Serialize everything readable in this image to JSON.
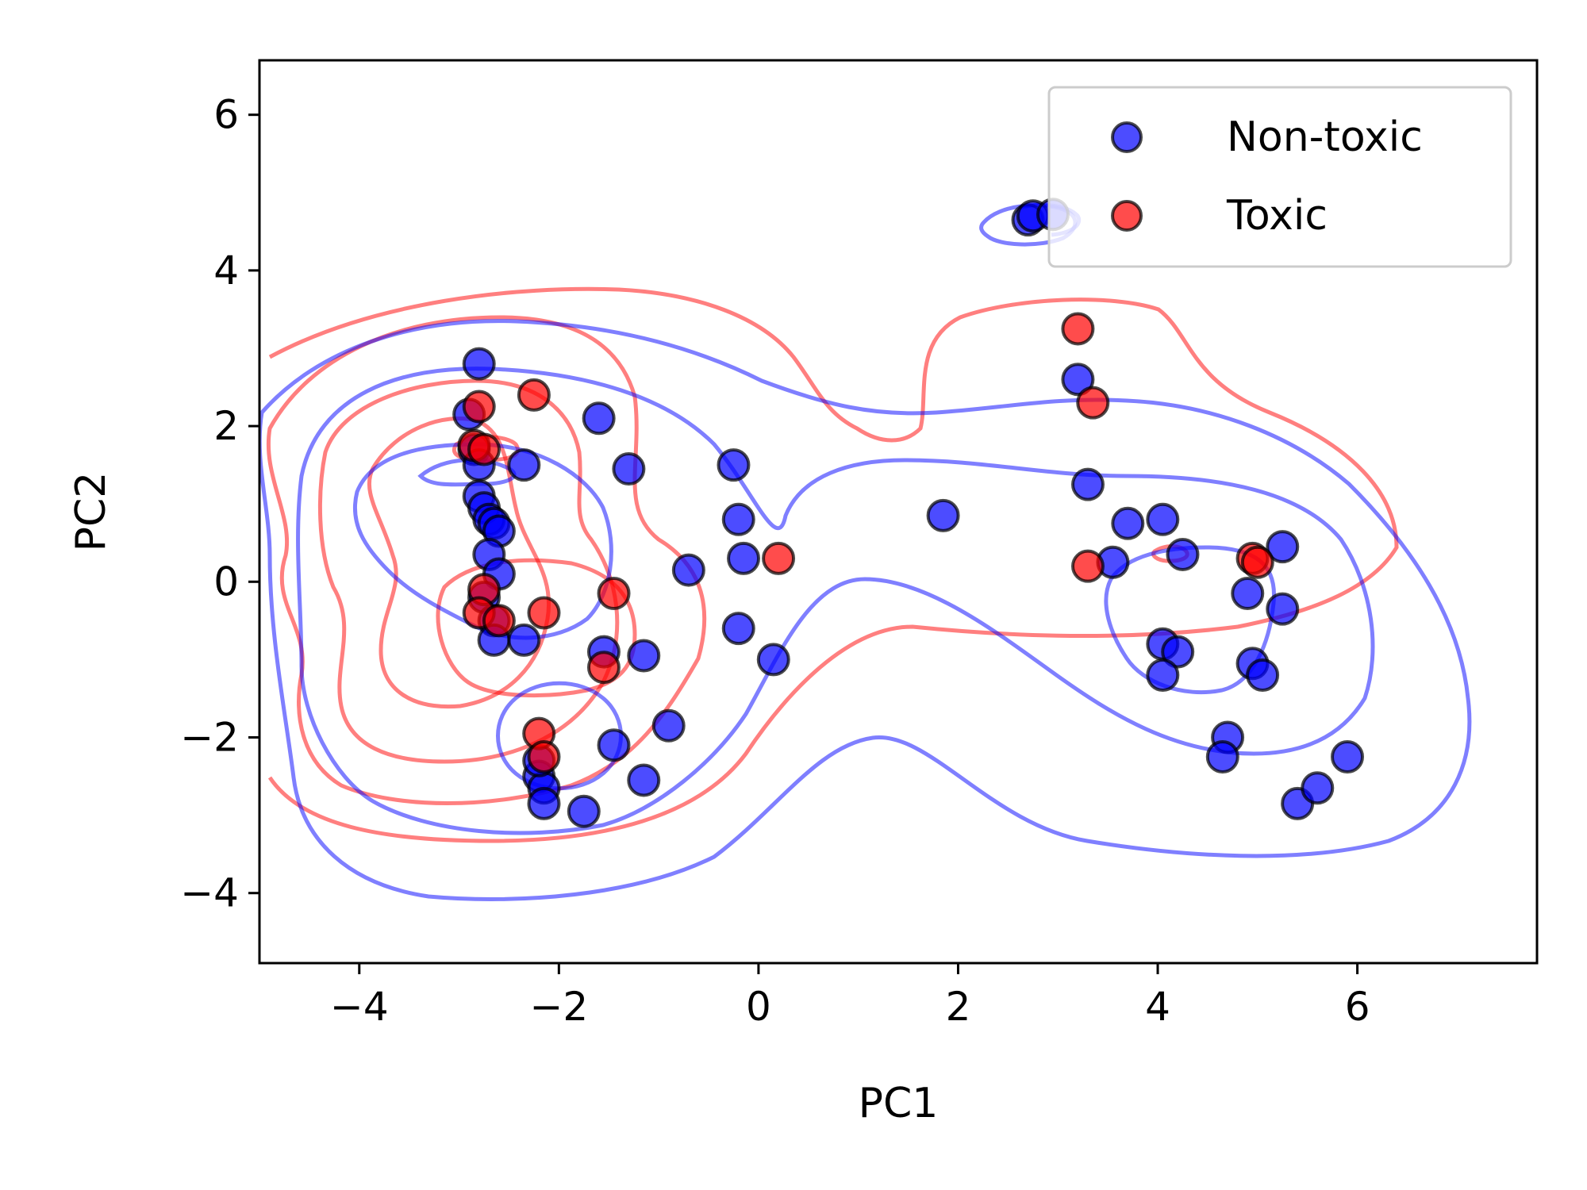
{
  "chart_data": {
    "type": "scatter",
    "title": "",
    "xlabel": "PC1",
    "ylabel": "PC2",
    "xlim": [
      -5,
      7.8
    ],
    "ylim": [
      -4.9,
      6.7
    ],
    "x_ticks": [
      -4,
      -2,
      0,
      2,
      4,
      6
    ],
    "y_ticks": [
      -4,
      -2,
      0,
      2,
      4,
      6
    ],
    "x_tick_labels": [
      "−4",
      "−2",
      "0",
      "2",
      "4",
      "6"
    ],
    "y_tick_labels": [
      "−4",
      "−2",
      "0",
      "2",
      "4",
      "6"
    ],
    "grid": false,
    "legend_position": "top-right",
    "series": [
      {
        "name": "Non-toxic",
        "color": "#0000ff",
        "points": [
          [
            -2.8,
            2.8
          ],
          [
            -2.9,
            2.15
          ],
          [
            -2.85,
            1.7
          ],
          [
            -2.8,
            1.5
          ],
          [
            -2.8,
            1.1
          ],
          [
            -2.75,
            0.95
          ],
          [
            -2.7,
            0.8
          ],
          [
            -2.65,
            0.75
          ],
          [
            -2.6,
            0.65
          ],
          [
            -2.7,
            0.35
          ],
          [
            -2.6,
            0.1
          ],
          [
            -2.75,
            -0.2
          ],
          [
            -2.65,
            -0.5
          ],
          [
            -2.65,
            -0.75
          ],
          [
            -2.35,
            -0.75
          ],
          [
            -2.35,
            1.5
          ],
          [
            -1.6,
            2.1
          ],
          [
            -1.3,
            1.45
          ],
          [
            -0.7,
            0.15
          ],
          [
            -0.25,
            1.5
          ],
          [
            -0.2,
            0.8
          ],
          [
            -0.15,
            0.3
          ],
          [
            -0.2,
            -0.6
          ],
          [
            0.15,
            -1.0
          ],
          [
            -1.55,
            -0.9
          ],
          [
            -1.15,
            -0.95
          ],
          [
            -1.45,
            -2.1
          ],
          [
            -0.9,
            -1.85
          ],
          [
            -1.15,
            -2.55
          ],
          [
            -1.75,
            -2.95
          ],
          [
            -2.2,
            -2.5
          ],
          [
            -2.15,
            -2.65
          ],
          [
            -2.15,
            -2.85
          ],
          [
            -2.2,
            -2.3
          ],
          [
            1.85,
            0.85
          ],
          [
            2.7,
            4.65
          ],
          [
            2.75,
            4.7
          ],
          [
            2.95,
            4.72
          ],
          [
            3.2,
            2.6
          ],
          [
            3.3,
            1.25
          ],
          [
            3.55,
            0.25
          ],
          [
            3.7,
            0.75
          ],
          [
            4.05,
            0.8
          ],
          [
            4.05,
            -0.8
          ],
          [
            4.2,
            -0.9
          ],
          [
            4.05,
            -1.2
          ],
          [
            4.25,
            0.35
          ],
          [
            4.7,
            -2.0
          ],
          [
            4.65,
            -2.25
          ],
          [
            4.9,
            -0.15
          ],
          [
            4.95,
            -1.05
          ],
          [
            5.05,
            -1.2
          ],
          [
            5.25,
            0.45
          ],
          [
            5.25,
            -0.35
          ],
          [
            5.4,
            -2.85
          ],
          [
            5.6,
            -2.65
          ],
          [
            5.9,
            -2.25
          ]
        ]
      },
      {
        "name": "Toxic",
        "color": "#ff0000",
        "points": [
          [
            -2.8,
            2.25
          ],
          [
            -2.85,
            1.75
          ],
          [
            -2.75,
            1.7
          ],
          [
            -2.25,
            2.4
          ],
          [
            -2.75,
            -0.1
          ],
          [
            -2.8,
            -0.4
          ],
          [
            -2.6,
            -0.5
          ],
          [
            -2.15,
            -0.4
          ],
          [
            -1.45,
            -0.15
          ],
          [
            -1.55,
            -1.1
          ],
          [
            0.2,
            0.3
          ],
          [
            -2.2,
            -1.95
          ],
          [
            -2.15,
            -2.25
          ],
          [
            3.2,
            3.25
          ],
          [
            3.35,
            2.3
          ],
          [
            3.3,
            0.2
          ],
          [
            4.95,
            0.3
          ],
          [
            5.0,
            0.25
          ]
        ]
      }
    ]
  }
}
